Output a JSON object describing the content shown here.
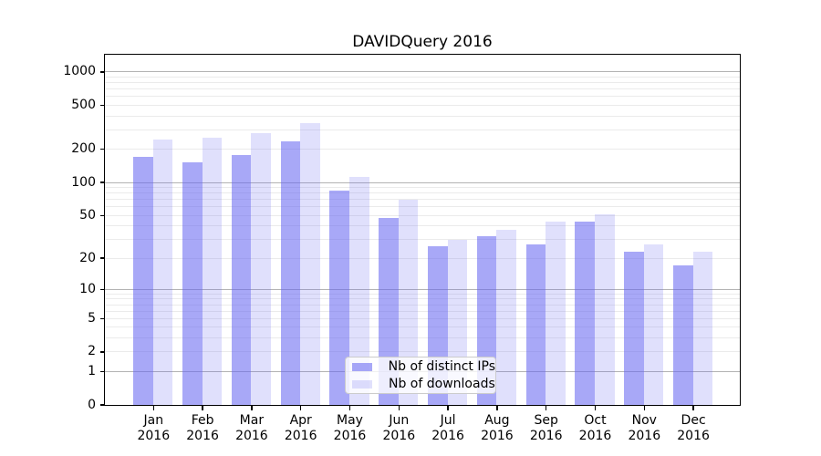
{
  "chart": {
    "title": "DAVIDQuery 2016",
    "year": "2016"
  },
  "chart_data": {
    "type": "bar",
    "title": "DAVIDQuery 2016",
    "categories": [
      "Jan 2016",
      "Feb 2016",
      "Mar 2016",
      "Apr 2016",
      "May 2016",
      "Jun 2016",
      "Jul 2016",
      "Aug 2016",
      "Sep 2016",
      "Oct 2016",
      "Nov 2016",
      "Dec 2016"
    ],
    "x_tick_months": [
      "Jan",
      "Feb",
      "Mar",
      "Apr",
      "May",
      "Jun",
      "Jul",
      "Aug",
      "Sep",
      "Oct",
      "Nov",
      "Dec"
    ],
    "x_tick_year": "2016",
    "series": [
      {
        "name": "Nb of distinct IPs",
        "values": [
          170,
          152,
          178,
          237,
          84,
          47,
          26,
          32,
          27,
          44,
          23,
          17
        ]
      },
      {
        "name": "Nb of downloads",
        "values": [
          243,
          253,
          278,
          347,
          112,
          70,
          30,
          37,
          44,
          51,
          27,
          23
        ]
      }
    ],
    "xlabel": "",
    "ylabel": "",
    "yscale": "log10(1+x)",
    "ylim": [
      0,
      1430
    ],
    "y_ticks": [
      0,
      1,
      2,
      5,
      10,
      20,
      50,
      100,
      200,
      500,
      1000
    ],
    "y_major_gridlines": [
      1,
      10,
      100,
      1000
    ],
    "grid": "both",
    "legend_position": "lower center"
  },
  "colors": {
    "bar_distinct_ips": "rgba(100,100,240,0.56)",
    "bar_downloads": "rgba(100,100,240,0.20)",
    "grid_major": "#b3b3b3",
    "grid_minor": "#ebebeb",
    "axis": "#000000",
    "legend_border": "#cccccc",
    "legend_bg": "rgba(255,255,255,0.8)"
  }
}
